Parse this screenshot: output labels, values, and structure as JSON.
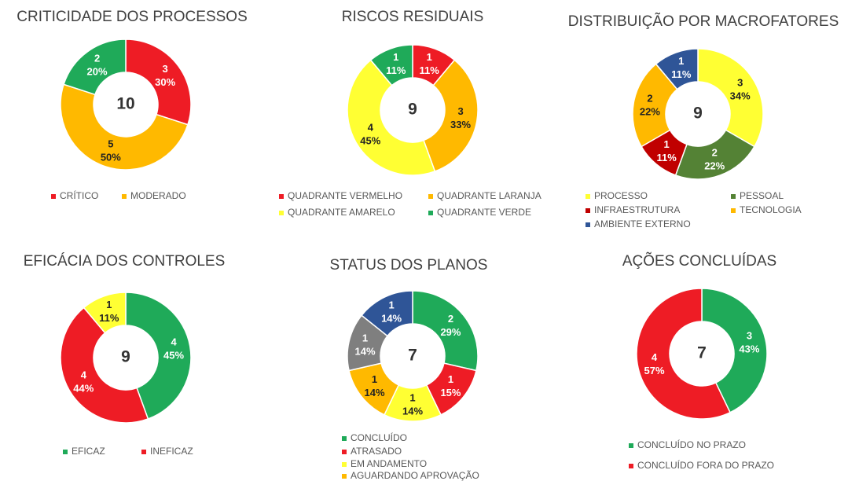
{
  "chart_data": [
    {
      "type": "donut",
      "title": "CRITICIDADE DOS PROCESSOS",
      "total": 10,
      "categories": [
        "CRÍTICO",
        "MODERADO",
        null
      ],
      "values": [
        3,
        5,
        2
      ],
      "percent_labels": [
        "30%",
        "50%",
        "20%"
      ],
      "colors": [
        "#ee1c25",
        "#ffb900",
        "#1faa59"
      ]
    },
    {
      "type": "donut",
      "title": "RISCOS RESIDUAIS",
      "total": 9,
      "categories": [
        "QUADRANTE VERMELHO",
        "QUADRANTE LARANJA",
        "QUADRANTE AMARELO",
        "QUADRANTE VERDE"
      ],
      "values": [
        1,
        3,
        4,
        1
      ],
      "percent_labels": [
        "11%",
        "33%",
        "45%",
        "11%"
      ],
      "colors": [
        "#ee1c25",
        "#ffb900",
        "#ffff33",
        "#1faa59"
      ]
    },
    {
      "type": "donut",
      "title": "DISTRIBUIÇÃO POR MACROFATORES",
      "total": 9,
      "categories": [
        "PROCESSO",
        "PESSOAL",
        "INFRAESTRUTURA",
        "TECNOLOGIA",
        "AMBIENTE EXTERNO"
      ],
      "values": [
        3,
        2,
        1,
        2,
        1
      ],
      "percent_labels": [
        "34%",
        "22%",
        "11%",
        "22%",
        "11%"
      ],
      "colors": [
        "#ffff33",
        "#548235",
        "#c00000",
        "#ffb900",
        "#2f5597"
      ]
    },
    {
      "type": "donut",
      "title": "EFICÁCIA DOS CONTROLES",
      "total": 9,
      "categories": [
        "EFICAZ",
        "INEFICAZ",
        null
      ],
      "values": [
        4,
        4,
        1
      ],
      "percent_labels": [
        "45%",
        "44%",
        "11%"
      ],
      "colors": [
        "#1faa59",
        "#ee1c25",
        "#ffff33"
      ]
    },
    {
      "type": "donut",
      "title": "STATUS DOS PLANOS",
      "total": 7,
      "categories": [
        "CONCLUÍDO",
        "ATRASADO",
        "EM ANDAMENTO",
        "AGUARDANDO APROVAÇÃO",
        null,
        null
      ],
      "values": [
        2,
        1,
        1,
        1,
        1,
        1
      ],
      "percent_labels": [
        "29%",
        "15%",
        "14%",
        "14%",
        "14%",
        "14%"
      ],
      "colors": [
        "#1faa59",
        "#ee1c25",
        "#ffff33",
        "#ffb900",
        "#7f7f7f",
        "#2f5597"
      ]
    },
    {
      "type": "donut",
      "title": "AÇÕES CONCLUÍDAS",
      "total": 7,
      "categories": [
        "CONCLUÍDO NO PRAZO",
        "CONCLUÍDO FORA DO PRAZO"
      ],
      "values": [
        3,
        4
      ],
      "percent_labels": [
        "43%",
        "57%"
      ],
      "colors": [
        "#1faa59",
        "#ee1c25"
      ]
    }
  ]
}
